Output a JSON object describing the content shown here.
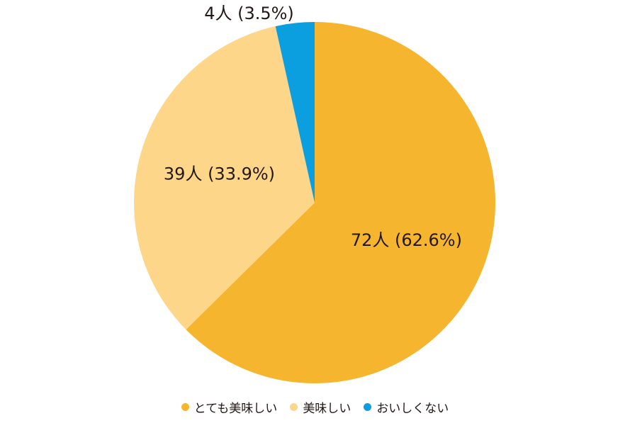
{
  "chart_data": {
    "type": "pie",
    "categories": [
      "とても美味しい",
      "美味しい",
      "おいしくない"
    ],
    "values": [
      72,
      39,
      4
    ],
    "value_labels": [
      "72人 (62.6%)",
      "39人 (33.9%)",
      "4人 (3.5%)"
    ],
    "colors": [
      "#f5b52e",
      "#fdd68a",
      "#0b9fe0"
    ]
  }
}
